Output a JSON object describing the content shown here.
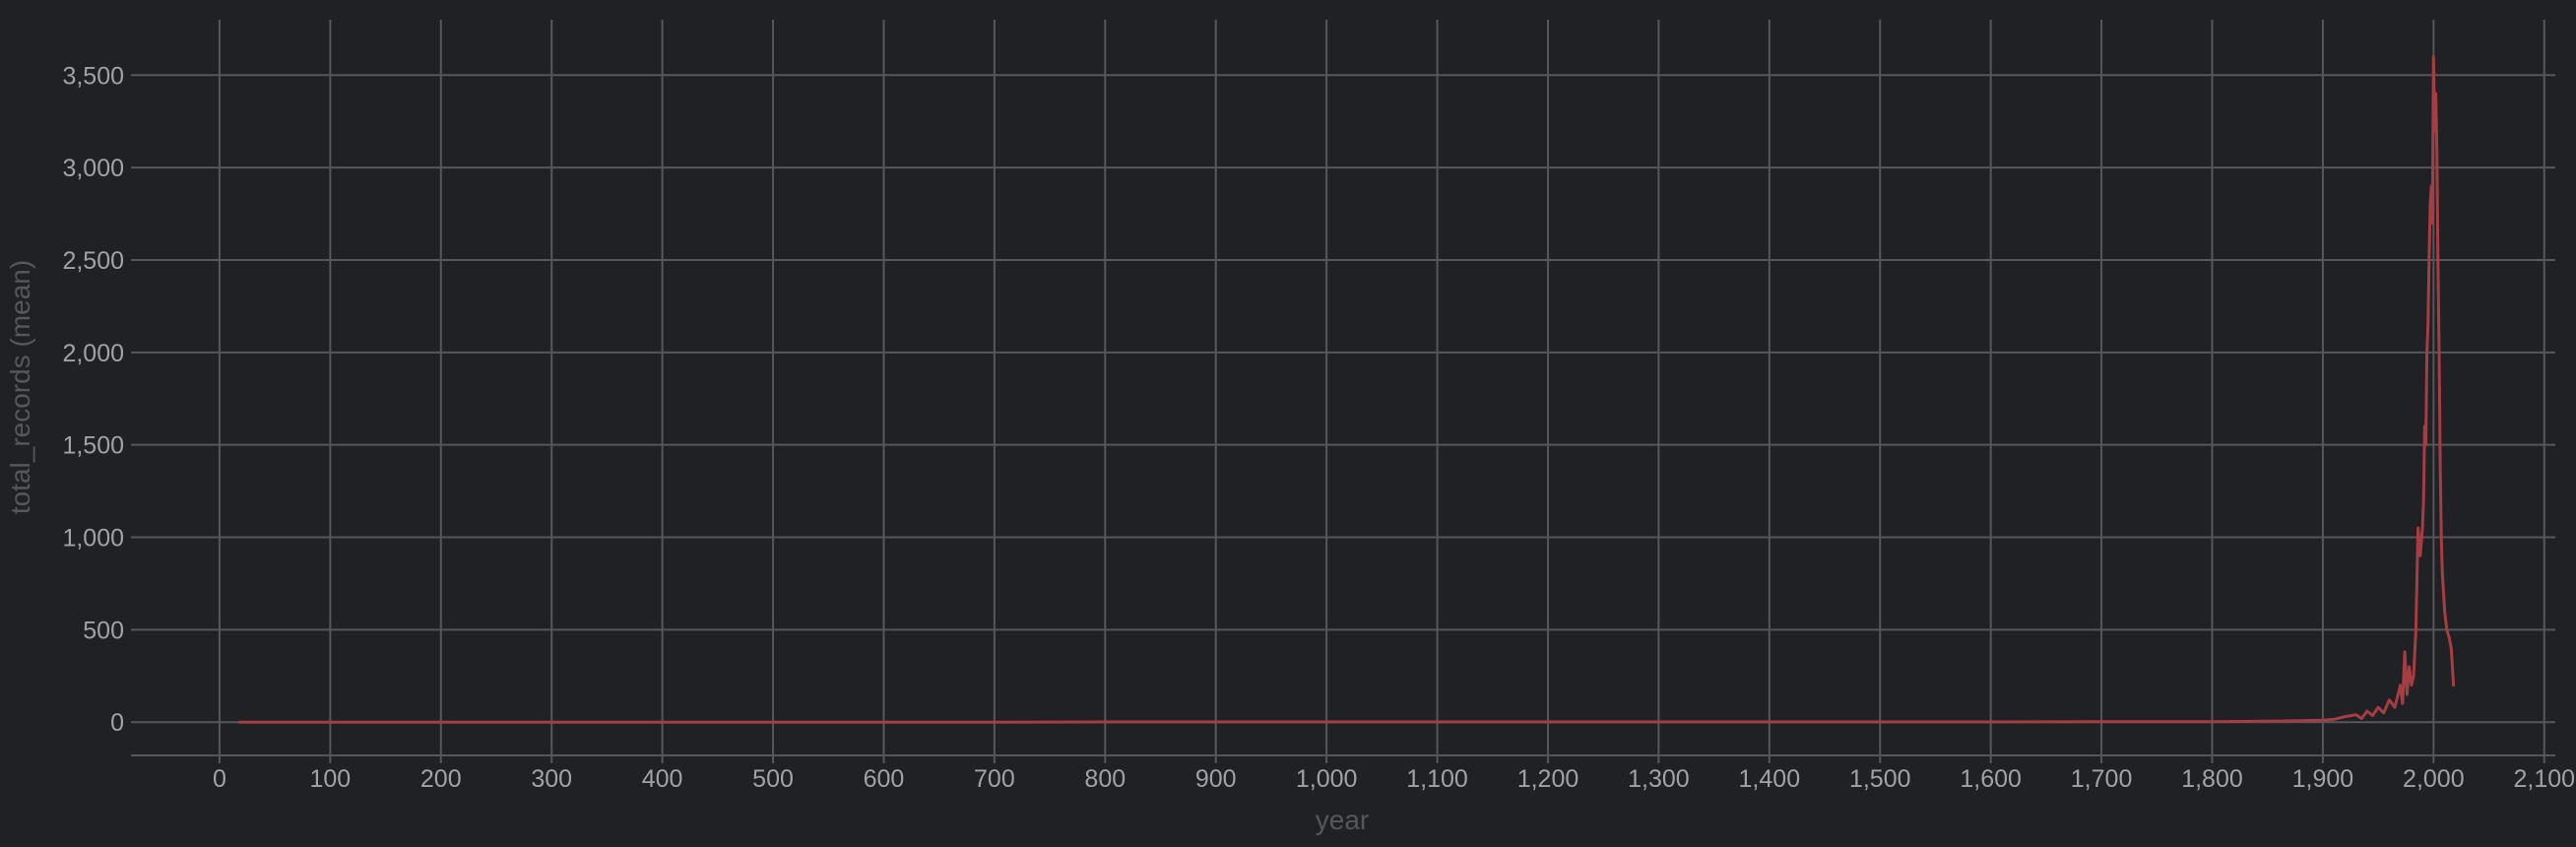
{
  "chart_data": {
    "type": "line",
    "xlabel": "year",
    "ylabel": "total_records (mean)",
    "xlim": [
      -80,
      2110
    ],
    "ylim": [
      -180,
      3800
    ],
    "x_ticks": [
      0,
      100,
      200,
      300,
      400,
      500,
      600,
      700,
      800,
      900,
      1000,
      1100,
      1200,
      1300,
      1400,
      1500,
      1600,
      1700,
      1800,
      1900,
      2000,
      2100
    ],
    "x_tick_labels": [
      "0",
      "100",
      "200",
      "300",
      "400",
      "500",
      "600",
      "700",
      "800",
      "900",
      "1,000",
      "1,100",
      "1,200",
      "1,300",
      "1,400",
      "1,500",
      "1,600",
      "1,700",
      "1,800",
      "1,900",
      "2,000",
      "2,100"
    ],
    "y_ticks": [
      0,
      500,
      1000,
      1500,
      2000,
      2500,
      3000,
      3500
    ],
    "y_tick_labels": [
      "0",
      "500",
      "1,000",
      "1,500",
      "2,000",
      "2,500",
      "3,000",
      "3,500"
    ],
    "grid": true,
    "colors": {
      "background": "#202124",
      "grid": "#55575b",
      "series": "#a43e43",
      "tick_text": "#a0a2a8",
      "axis_title_text": "#55575c"
    },
    "series": [
      {
        "values_x": [
          18,
          100,
          200,
          300,
          400,
          500,
          600,
          700,
          800,
          900,
          1000,
          1100,
          1200,
          1300,
          1400,
          1500,
          1600,
          1700,
          1800,
          1850,
          1880,
          1900,
          1910,
          1920,
          1930,
          1935,
          1940,
          1945,
          1950,
          1955,
          1960,
          1965,
          1970,
          1972,
          1974,
          1976,
          1978,
          1980,
          1982,
          1984,
          1986,
          1988,
          1990,
          1991,
          1992,
          1993,
          1994,
          1995,
          1996,
          1997,
          1998,
          1999,
          2000,
          2001,
          2002,
          2003,
          2004,
          2005,
          2006,
          2007,
          2008,
          2009,
          2010,
          2012,
          2014,
          2016,
          2018
        ],
        "values_y": [
          0,
          0,
          0,
          0,
          0,
          0,
          0,
          0,
          1,
          1,
          1,
          1,
          1,
          1,
          1,
          1,
          1,
          2,
          3,
          5,
          8,
          10,
          15,
          30,
          40,
          20,
          60,
          35,
          80,
          50,
          120,
          80,
          200,
          100,
          380,
          150,
          300,
          200,
          250,
          500,
          1050,
          900,
          1050,
          1200,
          1600,
          1500,
          2000,
          2150,
          2500,
          2800,
          2900,
          2700,
          3600,
          3200,
          3400,
          3100,
          2500,
          2000,
          1400,
          1000,
          800,
          700,
          600,
          500,
          460,
          400,
          200
        ]
      }
    ]
  }
}
